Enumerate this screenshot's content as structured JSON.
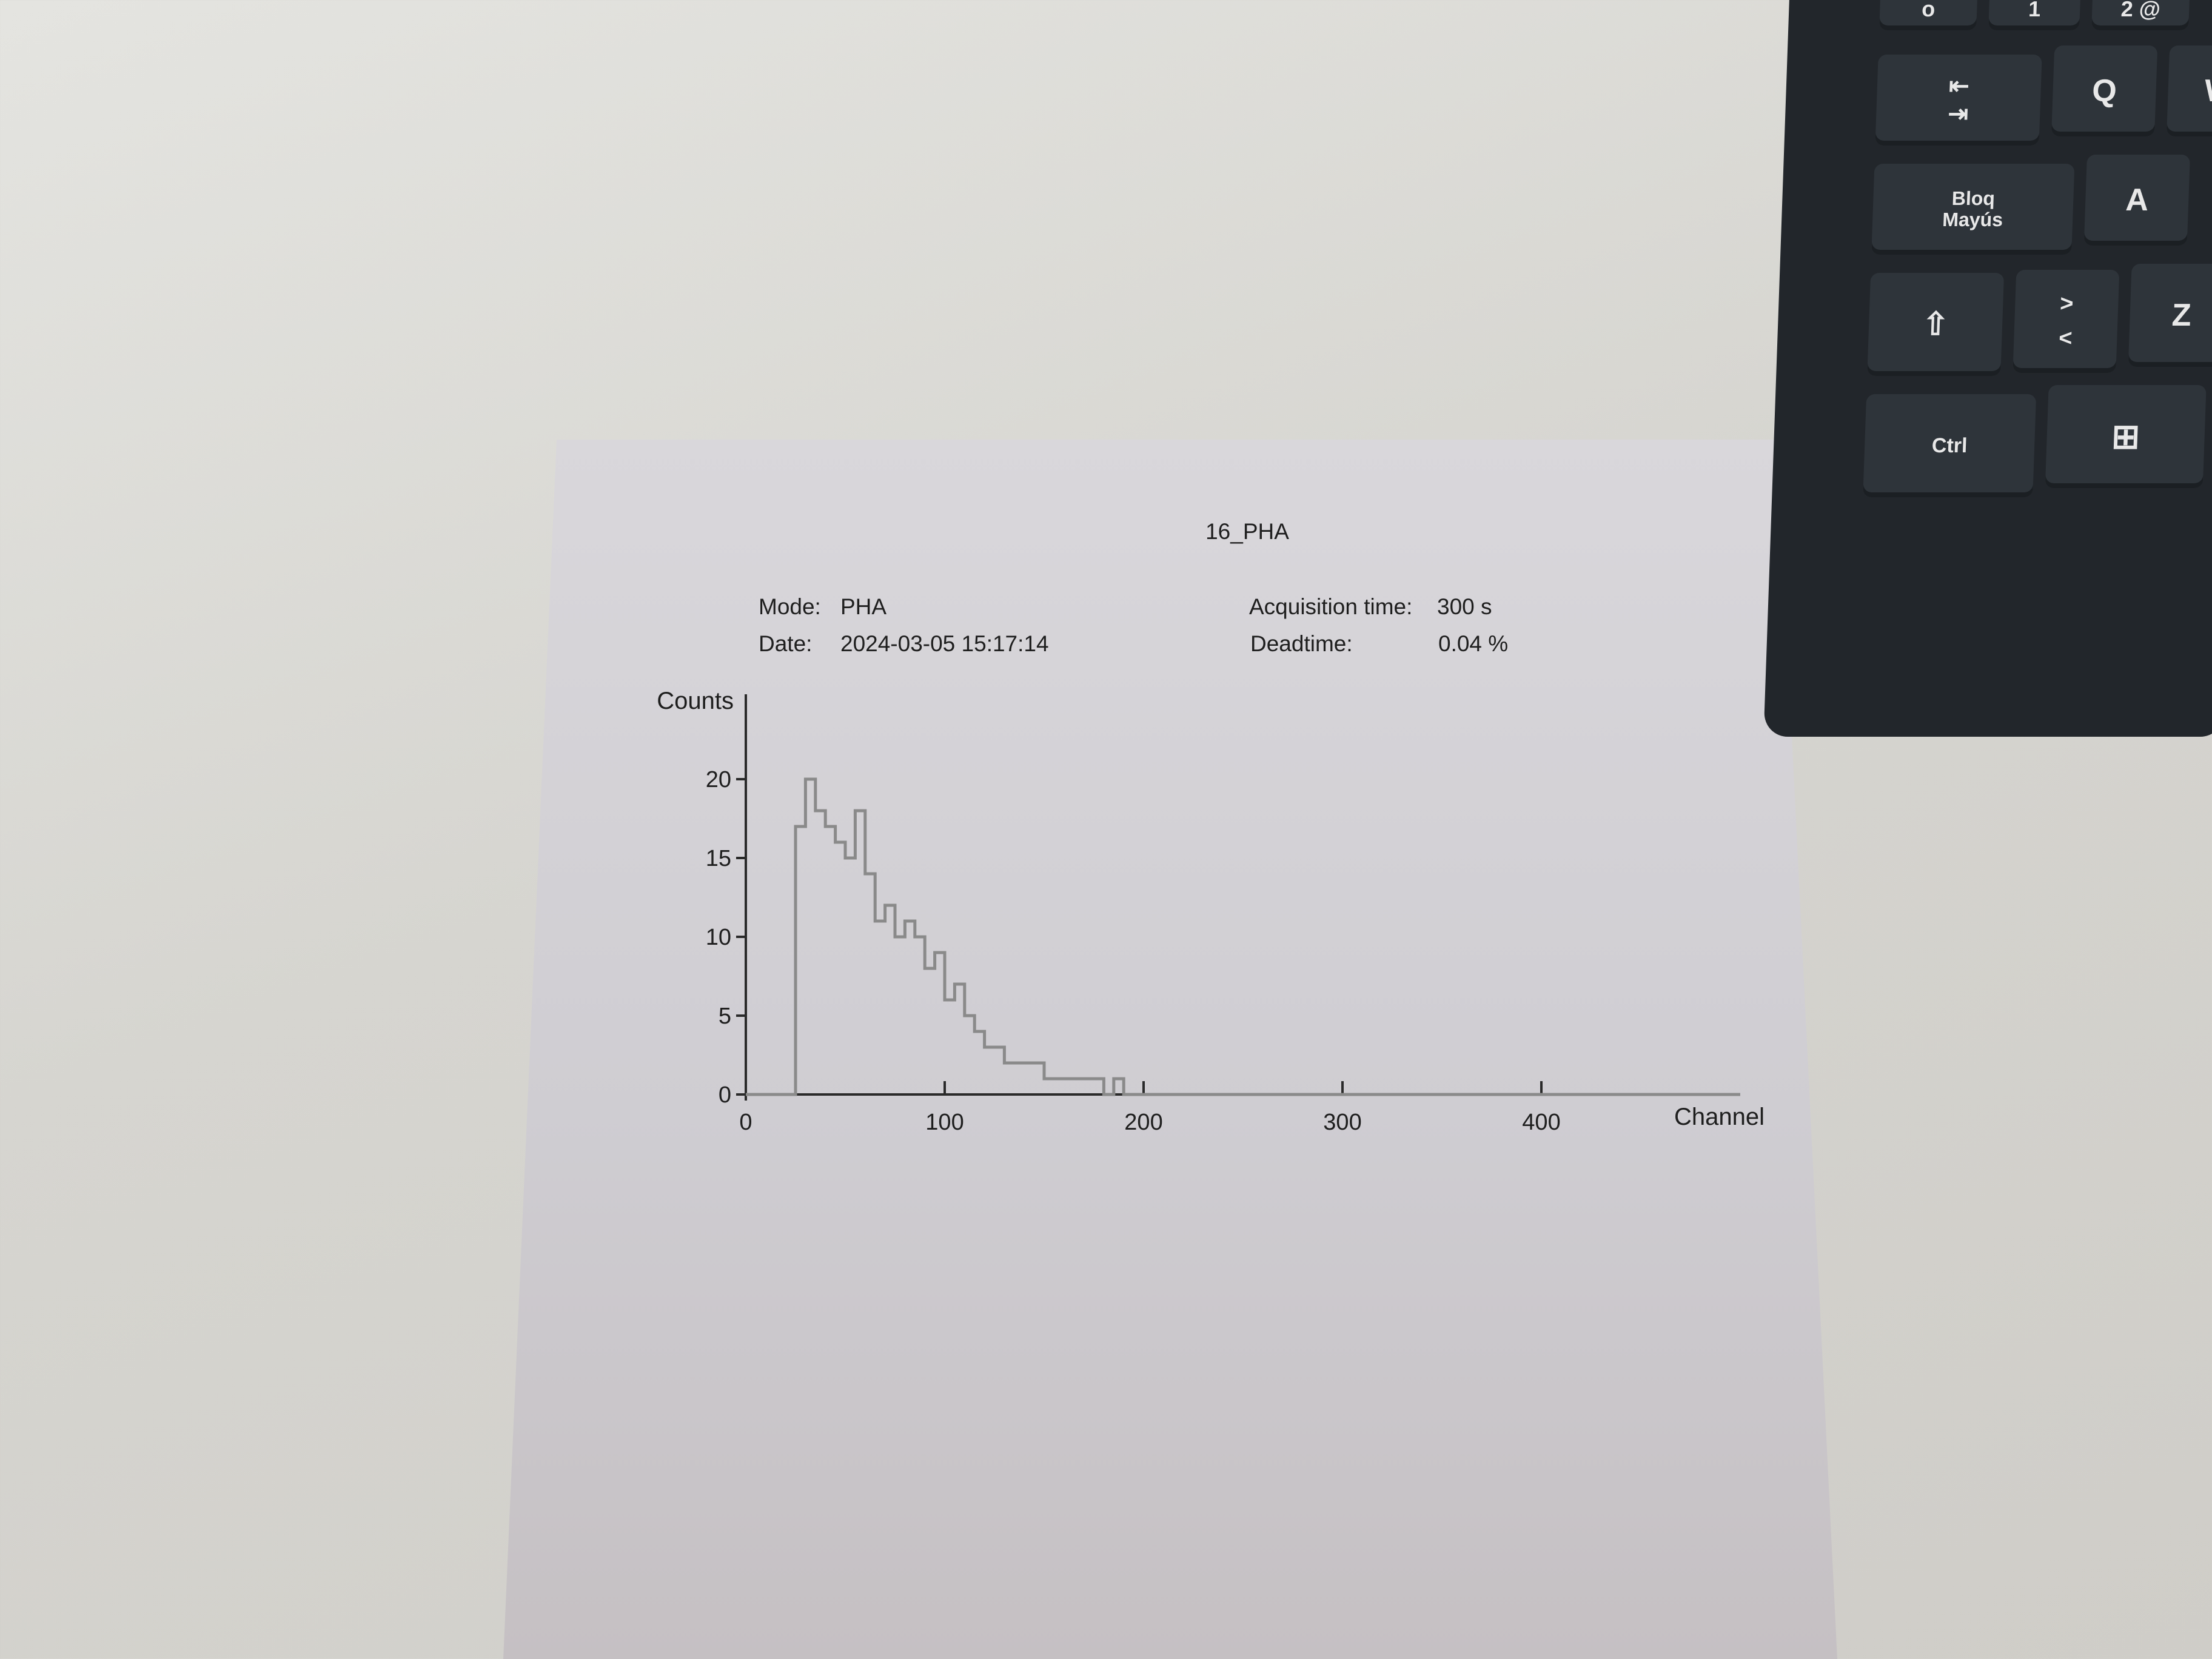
{
  "document": {
    "title": "16_PHA",
    "mode_label": "Mode:",
    "mode_value": "PHA",
    "date_label": "Date:",
    "date_value": "2024-03-05 15:17:14",
    "acq_label": "Acquisition time:",
    "acq_value": "300 s",
    "deadtime_label": "Deadtime:",
    "deadtime_value": "0.04 %"
  },
  "chart_data": {
    "type": "line",
    "title": "16_PHA",
    "xlabel": "Channel",
    "ylabel": "Counts",
    "xlim": [
      0,
      500
    ],
    "ylim": [
      0,
      25
    ],
    "x_ticks": [
      0,
      100,
      200,
      300,
      400
    ],
    "y_ticks": [
      0,
      5,
      10,
      15,
      20
    ],
    "grid": false,
    "line_color": "#8a8a8a",
    "series": [
      {
        "x": [
          0,
          20,
          25,
          30,
          35,
          40,
          45,
          50,
          55,
          60,
          65,
          70,
          75,
          80,
          85,
          90,
          95,
          100,
          105,
          110,
          115,
          120,
          125,
          130,
          135,
          140,
          145,
          150,
          155,
          160,
          165,
          170,
          175,
          180,
          185,
          190,
          195,
          200,
          210,
          220,
          250,
          300,
          350,
          400,
          450,
          500
        ],
        "values": [
          0,
          0,
          17,
          20,
          18,
          17,
          16,
          15,
          18,
          14,
          11,
          12,
          10,
          11,
          10,
          8,
          9,
          6,
          7,
          5,
          4,
          3,
          3,
          2,
          2,
          2,
          2,
          1,
          1,
          1,
          1,
          1,
          1,
          0,
          1,
          0,
          0,
          0,
          0,
          0,
          0,
          0,
          0,
          0,
          0,
          0
        ]
      }
    ]
  },
  "keyboard": {
    "key_zero": "o",
    "key_one": "1",
    "key_two": "2 @",
    "key_tab": "⇤\n⇥",
    "key_q": "Q",
    "key_w": "W",
    "key_caps": "Bloq\nMayús",
    "key_a": "A",
    "key_shift": "⇧",
    "key_angle": ">\n<",
    "key_z": "Z",
    "key_ctrl": "Ctrl",
    "key_win": "⊞"
  }
}
